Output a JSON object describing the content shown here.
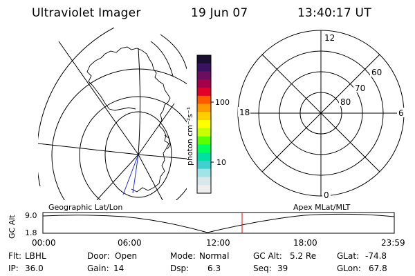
{
  "header": {
    "instrument": "Ultraviolet Imager",
    "date": "19 Jun 07",
    "time": "13:40:17 UT"
  },
  "colorbar": {
    "unit_label": "photon cm⁻²s⁻¹",
    "ticks": [
      "100",
      "10"
    ],
    "colors": [
      "#1a0f2e",
      "#3a1360",
      "#6a0f60",
      "#a4004c",
      "#e0002a",
      "#ff5a00",
      "#ff9a00",
      "#ffcf00",
      "#ffff00",
      "#c8ff00",
      "#5aff00",
      "#00ff5a",
      "#00e0a0",
      "#40d0d0",
      "#a0e4e8",
      "#d8e8ea",
      "#eeeeee"
    ]
  },
  "polar_plot": {
    "hour_labels": {
      "top": "12",
      "left": "18",
      "right": "6",
      "bottom": "0"
    },
    "lat_labels": [
      "60",
      "70",
      "80"
    ]
  },
  "timeline": {
    "axis_title": "GC Alt",
    "y_ticks": [
      "9.0",
      "1.8"
    ],
    "left_title": "Geographic Lat/Lon",
    "right_title": "Apex MLat/MLT",
    "x_ticks": [
      "00:00",
      "06:00",
      "12:00",
      "18:00",
      "23:59"
    ],
    "marker_color": "#e00000"
  },
  "status": {
    "row1": [
      {
        "label": "Flt:",
        "value": "LBHL"
      },
      {
        "label": "Door:",
        "value": "Open"
      },
      {
        "label": "Mode:",
        "value": "Normal"
      },
      {
        "label": "GC Alt:",
        "value": "5.2 Re"
      },
      {
        "label": "GLat:",
        "value": "-74.8"
      }
    ],
    "row2": [
      {
        "label": "IP:",
        "value": "36.0"
      },
      {
        "label": "Gain:",
        "value": "14"
      },
      {
        "label": "Dsp:",
        "value": "6.3"
      },
      {
        "label": "Seq:",
        "value": "39"
      },
      {
        "label": "GLon:",
        "value": "67.8"
      }
    ]
  }
}
